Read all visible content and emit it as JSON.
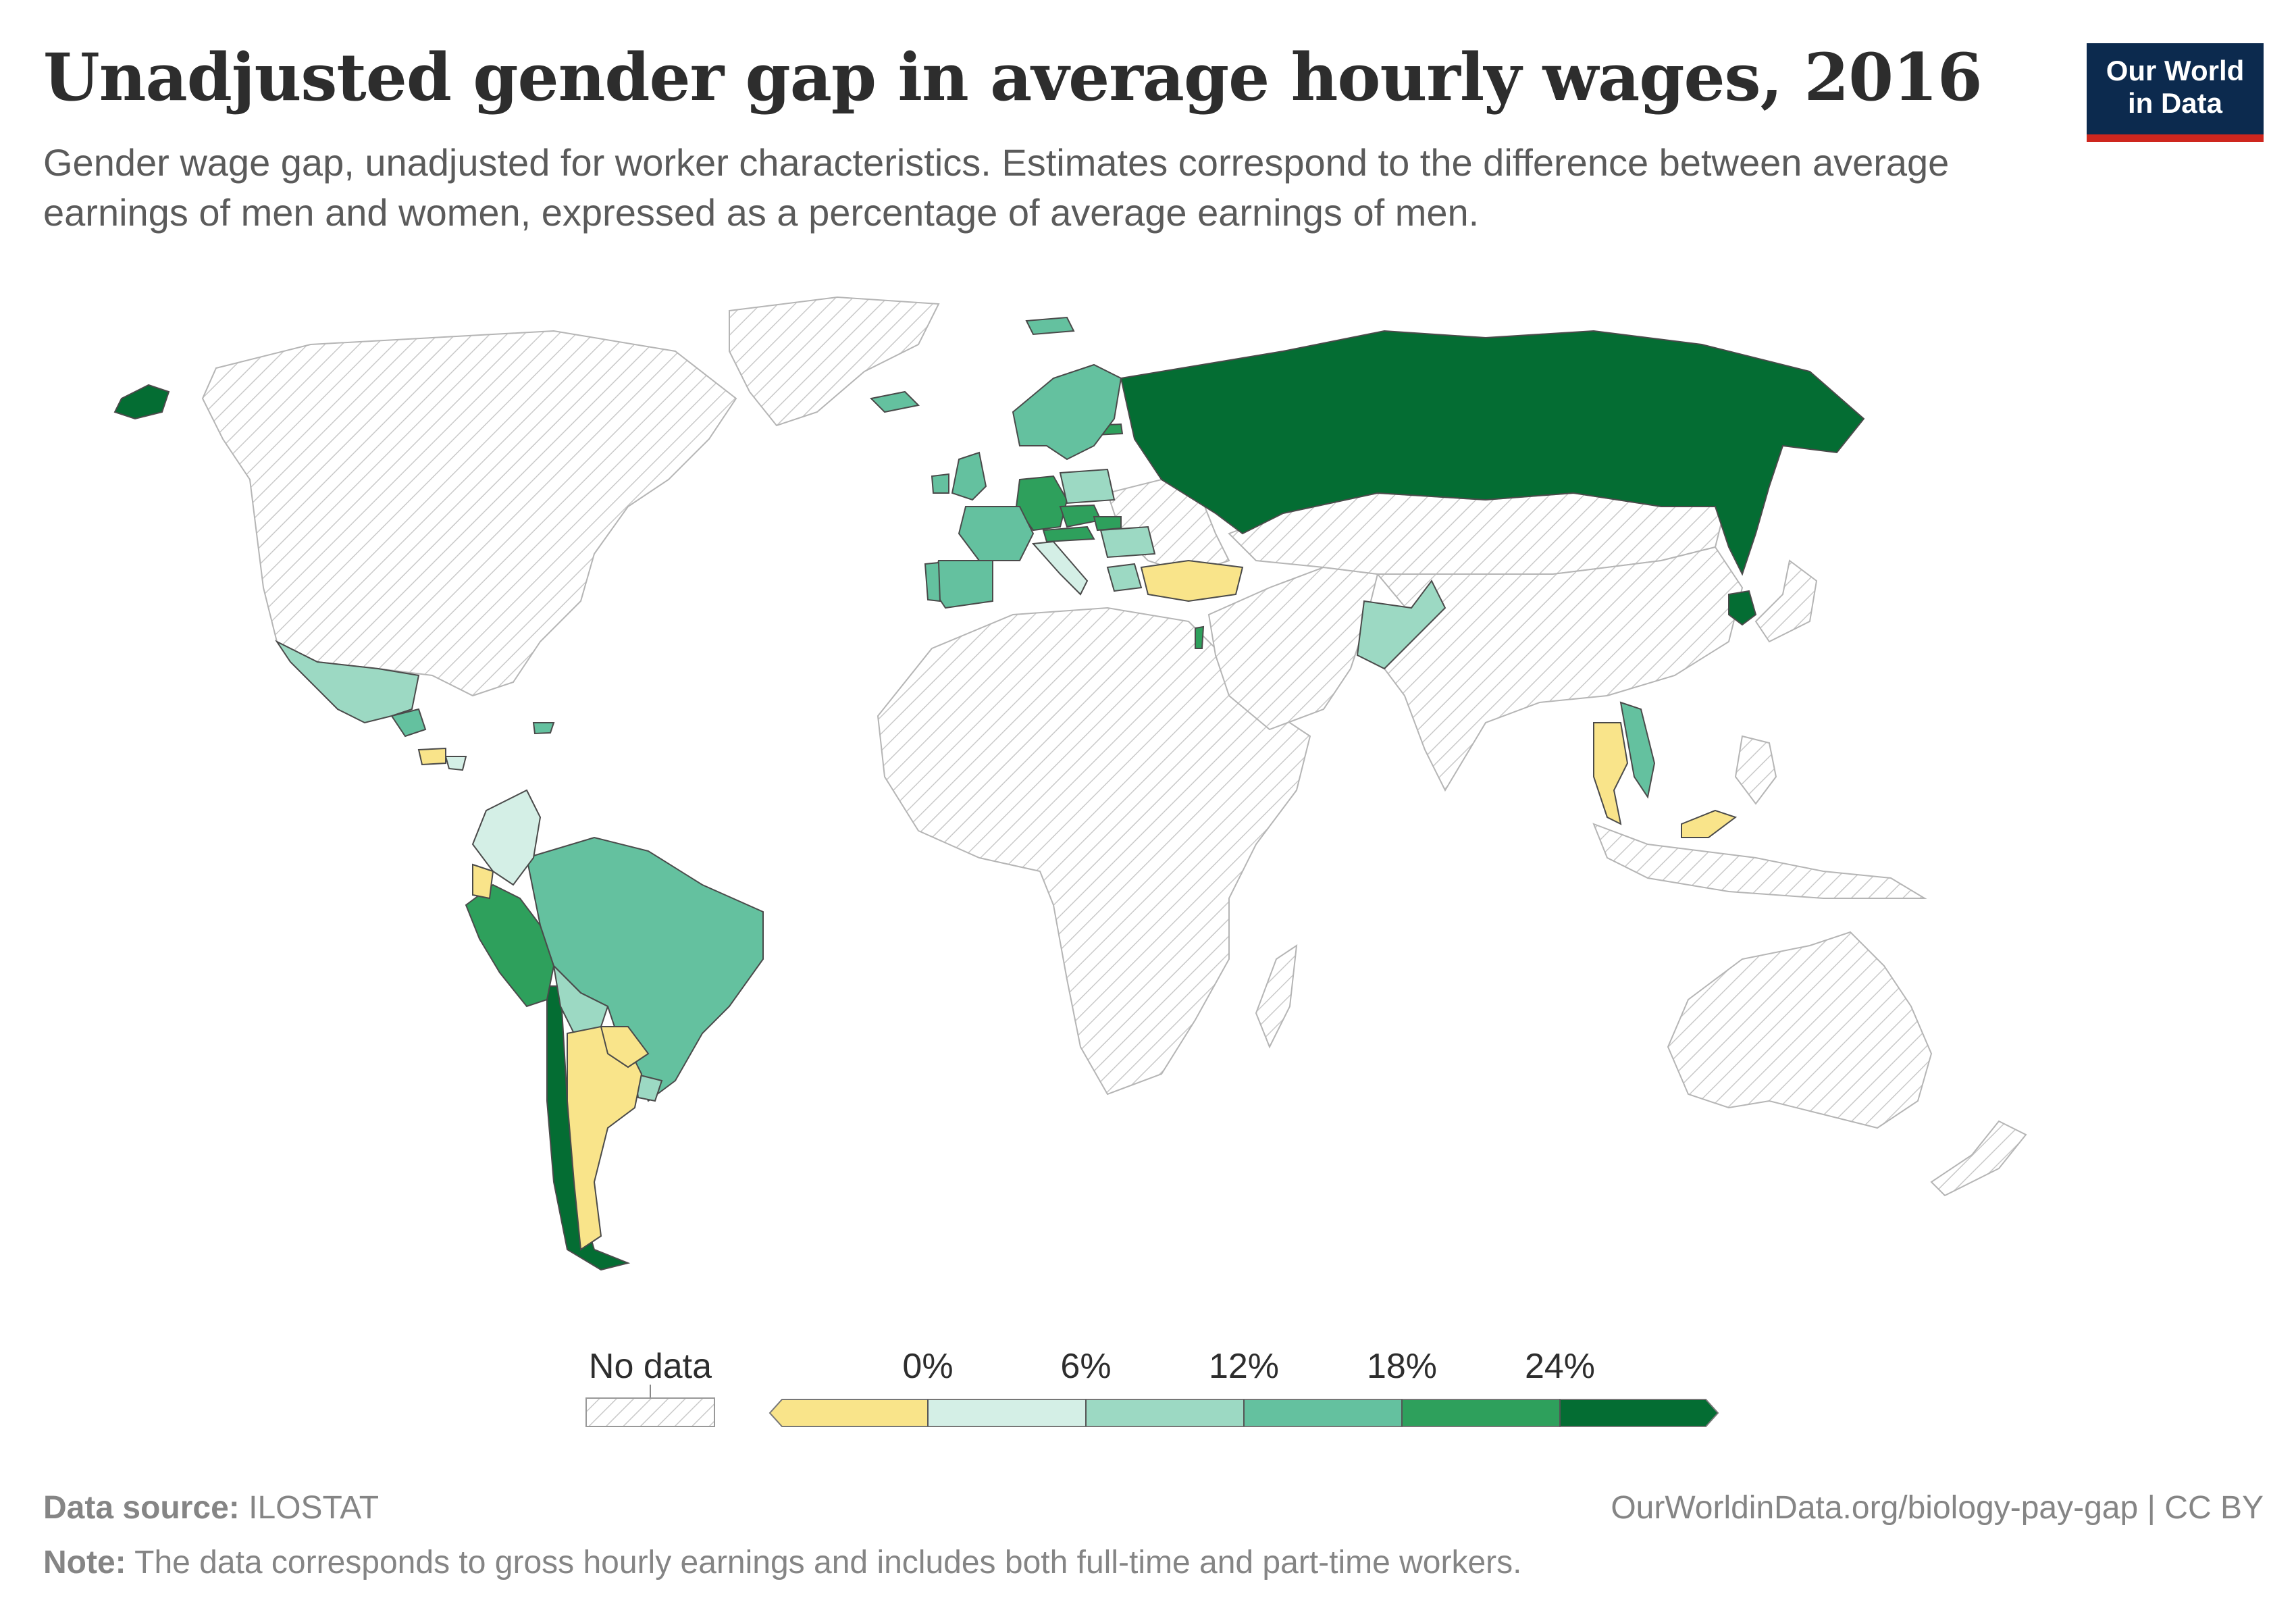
{
  "title": "Unadjusted gender gap in average hourly wages, 2016",
  "subtitle": "Gender wage gap, unadjusted for worker characteristics. Estimates correspond to the difference between average earnings of men and women, expressed as a percentage of average earnings of men.",
  "logo": {
    "line1": "Our World",
    "line2": "in Data"
  },
  "chart_data": {
    "type": "choropleth",
    "year": 2016,
    "variable": "Unadjusted gender pay gap (%)",
    "legend": {
      "no_data_label": "No data",
      "ticks": [
        "0%",
        "6%",
        "12%",
        "18%",
        "24%"
      ],
      "bins": [
        {
          "range": "< 0%",
          "color": "#f9e48a"
        },
        {
          "range": "0–6%",
          "color": "#d4efe6"
        },
        {
          "range": "6–12%",
          "color": "#9cd9c3"
        },
        {
          "range": "12–18%",
          "color": "#64c19f"
        },
        {
          "range": "18–24%",
          "color": "#2ea05c"
        },
        {
          "range": "> 24%",
          "color": "#046d33"
        }
      ]
    },
    "countries": [
      {
        "name": "Russia",
        "bin": "> 24%"
      },
      {
        "name": "Alaska (United States)",
        "bin": "> 24%"
      },
      {
        "name": "South Korea",
        "bin": "> 24%"
      },
      {
        "name": "Chile",
        "bin": "> 24%"
      },
      {
        "name": "Peru",
        "bin": "18–24%"
      },
      {
        "name": "Germany",
        "bin": "18–24%"
      },
      {
        "name": "Czechia",
        "bin": "18–24%"
      },
      {
        "name": "Austria",
        "bin": "18–24%"
      },
      {
        "name": "Slovakia",
        "bin": "18–24%"
      },
      {
        "name": "Estonia",
        "bin": "18–24%"
      },
      {
        "name": "Israel",
        "bin": "18–24%"
      },
      {
        "name": "Brazil",
        "bin": "12–18%"
      },
      {
        "name": "United Kingdom",
        "bin": "12–18%"
      },
      {
        "name": "France",
        "bin": "12–18%"
      },
      {
        "name": "Spain",
        "bin": "12–18%"
      },
      {
        "name": "Portugal",
        "bin": "12–18%"
      },
      {
        "name": "Switzerland",
        "bin": "12–18%"
      },
      {
        "name": "Netherlands",
        "bin": "12–18%"
      },
      {
        "name": "Norway",
        "bin": "12–18%"
      },
      {
        "name": "Sweden",
        "bin": "12–18%"
      },
      {
        "name": "Finland",
        "bin": "12–18%"
      },
      {
        "name": "Iceland",
        "bin": "12–18%"
      },
      {
        "name": "Ireland",
        "bin": "12–18%"
      },
      {
        "name": "Latvia",
        "bin": "12–18%"
      },
      {
        "name": "Svalbard (Norway)",
        "bin": "12–18%"
      },
      {
        "name": "Vietnam",
        "bin": "12–18%"
      },
      {
        "name": "Dominican Republic",
        "bin": "12–18%"
      },
      {
        "name": "Guatemala",
        "bin": "12–18%"
      },
      {
        "name": "Mexico",
        "bin": "6–12%"
      },
      {
        "name": "Pakistan",
        "bin": "6–12%"
      },
      {
        "name": "Bolivia",
        "bin": "6–12%"
      },
      {
        "name": "Uruguay",
        "bin": "6–12%"
      },
      {
        "name": "Poland",
        "bin": "6–12%"
      },
      {
        "name": "Hungary",
        "bin": "6–12%"
      },
      {
        "name": "Romania",
        "bin": "6–12%"
      },
      {
        "name": "Greece",
        "bin": "6–12%"
      },
      {
        "name": "Denmark",
        "bin": "6–12%"
      },
      {
        "name": "Colombia",
        "bin": "0–6%"
      },
      {
        "name": "Italy",
        "bin": "0–6%"
      },
      {
        "name": "Costa Rica",
        "bin": "0–6%"
      },
      {
        "name": "Turkey",
        "bin": "< 0%"
      },
      {
        "name": "Thailand",
        "bin": "< 0%"
      },
      {
        "name": "Malaysia",
        "bin": "< 0%"
      },
      {
        "name": "Argentina",
        "bin": "< 0%"
      },
      {
        "name": "Paraguay",
        "bin": "< 0%"
      },
      {
        "name": "Ecuador",
        "bin": "< 0%"
      },
      {
        "name": "Honduras",
        "bin": "< 0%"
      }
    ]
  },
  "footer": {
    "source_label": "Data source:",
    "source_value": "ILOSTAT",
    "url": "OurWorldinData.org/biology-pay-gap | CC BY",
    "note_label": "Note:",
    "note_text": "The data corresponds to gross hourly earnings and includes both full-time and part-time workers."
  }
}
